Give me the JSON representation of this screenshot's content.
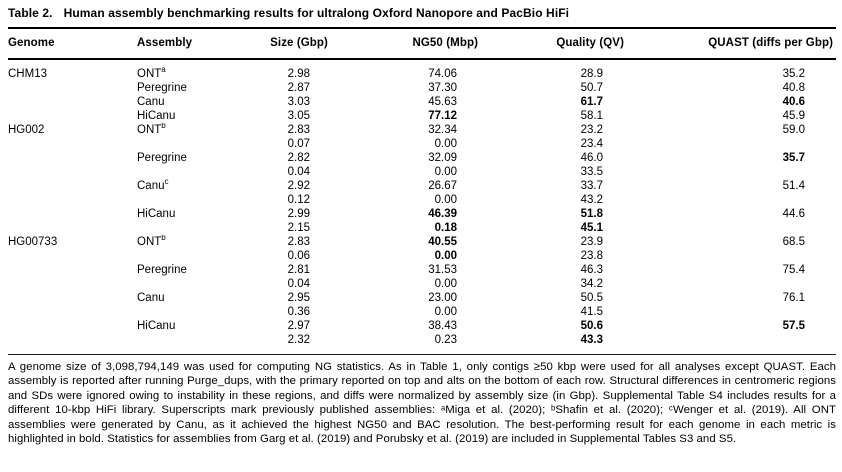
{
  "caption": {
    "label": "Table 2.",
    "text": "Human assembly benchmarking results for ultralong Oxford Nanopore and PacBio HiFi"
  },
  "columns": [
    "Genome",
    "Assembly",
    "Size (Gbp)",
    "NG50 (Mbp)",
    "Quality (QV)",
    "QUAST (diffs per Gbp)"
  ],
  "rows": [
    {
      "genome": "CHM13",
      "assembly": "ONT",
      "sup": "a",
      "size": "2.98",
      "ng50": "74.06",
      "qv": "28.9",
      "quast": "35.2",
      "bold": []
    },
    {
      "genome": "",
      "assembly": "Peregrine",
      "sup": "",
      "size": "2.87",
      "ng50": "37.30",
      "qv": "50.7",
      "quast": "40.8",
      "bold": []
    },
    {
      "genome": "",
      "assembly": "Canu",
      "sup": "",
      "size": "3.03",
      "ng50": "45.63",
      "qv": "61.7",
      "quast": "40.6",
      "bold": [
        "qv",
        "quast"
      ]
    },
    {
      "genome": "",
      "assembly": "HiCanu",
      "sup": "",
      "size": "3.05",
      "ng50": "77.12",
      "qv": "58.1",
      "quast": "45.9",
      "bold": [
        "ng50"
      ]
    },
    {
      "genome": "HG002",
      "assembly": "ONT",
      "sup": "b",
      "size": "2.83",
      "ng50": "32.34",
      "qv": "23.2",
      "quast": "59.0",
      "bold": []
    },
    {
      "genome": "",
      "assembly": "",
      "sup": "",
      "size": "0.07",
      "ng50": "0.00",
      "qv": "23.4",
      "quast": "",
      "bold": []
    },
    {
      "genome": "",
      "assembly": "Peregrine",
      "sup": "",
      "size": "2.82",
      "ng50": "32.09",
      "qv": "46.0",
      "quast": "35.7",
      "bold": [
        "quast"
      ]
    },
    {
      "genome": "",
      "assembly": "",
      "sup": "",
      "size": "0.04",
      "ng50": "0.00",
      "qv": "33.5",
      "quast": "",
      "bold": []
    },
    {
      "genome": "",
      "assembly": "Canu",
      "sup": "c",
      "size": "2.92",
      "ng50": "26.67",
      "qv": "33.7",
      "quast": "51.4",
      "bold": []
    },
    {
      "genome": "",
      "assembly": "",
      "sup": "",
      "size": "0.12",
      "ng50": "0.00",
      "qv": "43.2",
      "quast": "",
      "bold": []
    },
    {
      "genome": "",
      "assembly": "HiCanu",
      "sup": "",
      "size": "2.99",
      "ng50": "46.39",
      "qv": "51.8",
      "quast": "44.6",
      "bold": [
        "ng50",
        "qv"
      ]
    },
    {
      "genome": "",
      "assembly": "",
      "sup": "",
      "size": "2.15",
      "ng50": "0.18",
      "qv": "45.1",
      "quast": "",
      "bold": [
        "ng50",
        "qv"
      ]
    },
    {
      "genome": "HG00733",
      "assembly": "ONT",
      "sup": "b",
      "size": "2.83",
      "ng50": "40.55",
      "qv": "23.9",
      "quast": "68.5",
      "bold": [
        "ng50"
      ]
    },
    {
      "genome": "",
      "assembly": "",
      "sup": "",
      "size": "0.06",
      "ng50": "0.00",
      "qv": "23.8",
      "quast": "",
      "bold": [
        "ng50"
      ]
    },
    {
      "genome": "",
      "assembly": "Peregrine",
      "sup": "",
      "size": "2.81",
      "ng50": "31.53",
      "qv": "46.3",
      "quast": "75.4",
      "bold": []
    },
    {
      "genome": "",
      "assembly": "",
      "sup": "",
      "size": "0.04",
      "ng50": "0.00",
      "qv": "34.2",
      "quast": "",
      "bold": []
    },
    {
      "genome": "",
      "assembly": "Canu",
      "sup": "",
      "size": "2.95",
      "ng50": "23.00",
      "qv": "50.5",
      "quast": "76.1",
      "bold": []
    },
    {
      "genome": "",
      "assembly": "",
      "sup": "",
      "size": "0.36",
      "ng50": "0.00",
      "qv": "41.5",
      "quast": "",
      "bold": []
    },
    {
      "genome": "",
      "assembly": "HiCanu",
      "sup": "",
      "size": "2.97",
      "ng50": "38.43",
      "qv": "50.6",
      "quast": "57.5",
      "bold": [
        "qv",
        "quast"
      ]
    },
    {
      "genome": "",
      "assembly": "",
      "sup": "",
      "size": "2.32",
      "ng50": "0.23",
      "qv": "43.3",
      "quast": "",
      "bold": [
        "qv"
      ]
    }
  ],
  "footnote": "A genome size of 3,098,794,149 was used for computing NG statistics. As in Table 1, only contigs ≥50 kbp were used for all analyses except QUAST. Each assembly is reported after running Purge_dups, with the primary reported on top and alts on the bottom of each row. Structural differences in centromeric regions and SDs were ignored owing to instability in these regions, and diffs were normalized by assembly size (in Gbp). Supplemental Table S4 includes results for a different 10-kbp HiFi library. Superscripts mark previously published assemblies: ᵃMiga et al. (2020); ᵇShafin et al. (2020); ᶜWenger et al. (2019). All ONT assemblies were generated by Canu, as it achieved the highest NG50 and BAC resolution. The best-performing result for each genome in each metric is highlighted in bold. Statistics for assemblies from Garg et al. (2019) and Porubsky et al. (2019) are included in Supplemental Tables S3 and S5.",
  "text_color": "#000000",
  "background_color": "#ffffff"
}
